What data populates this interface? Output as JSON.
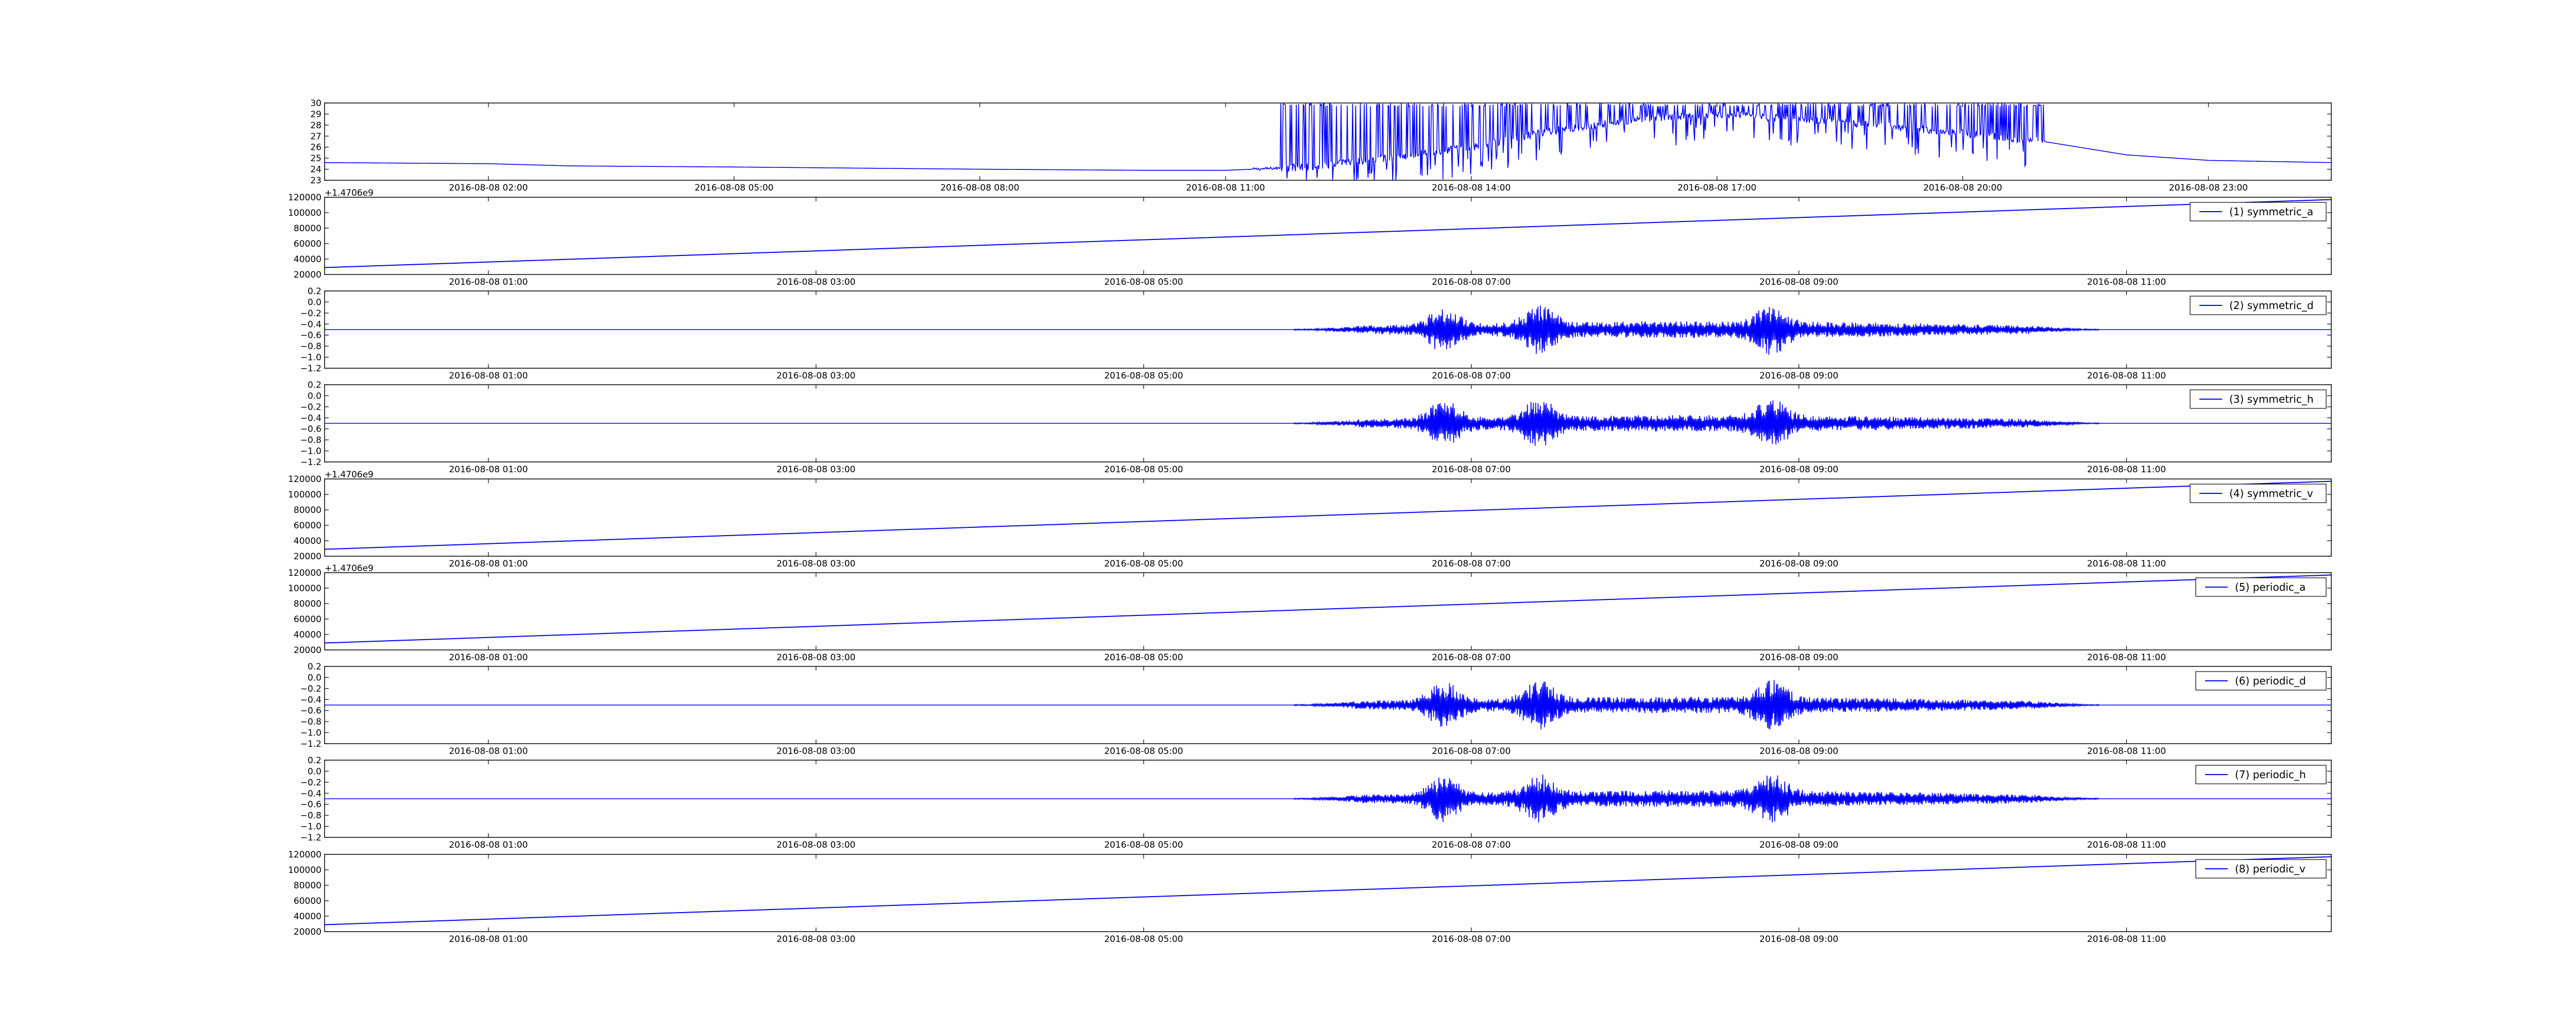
{
  "colors": {
    "line": "#0000ff",
    "axes": "#000000",
    "background": "#ffffff"
  },
  "chart_data": [
    {
      "type": "line",
      "legend": null,
      "ylim": [
        23,
        30
      ],
      "yticks": [
        "30",
        "29",
        "28",
        "27",
        "26",
        "25",
        "24",
        "23"
      ],
      "ytick_values": [
        30,
        29,
        28,
        27,
        26,
        25,
        24,
        23
      ],
      "xlim": [
        "2016-08-08 00:00",
        "2016-08-09 00:30"
      ],
      "xticks": [
        "2016-08-08 02:00",
        "2016-08-08 05:00",
        "2016-08-08 08:00",
        "2016-08-08 11:00",
        "2016-08-08 14:00",
        "2016-08-08 17:00",
        "2016-08-08 20:00",
        "2016-08-08 23:00"
      ],
      "xtick_values": [
        120,
        300,
        480,
        660,
        840,
        1020,
        1200,
        1380
      ],
      "x_minutes": [
        0,
        120,
        180,
        300,
        480,
        600,
        660,
        720,
        780,
        840,
        900,
        960,
        1020,
        1080,
        1140,
        1260,
        1320,
        1380,
        1470
      ],
      "values": [
        24.6,
        24.5,
        24.3,
        24.2,
        24.0,
        23.9,
        23.9,
        24.2,
        25.0,
        26.0,
        27.5,
        28.5,
        29.0,
        28.5,
        28.0,
        26.5,
        25.3,
        24.8,
        24.6
      ],
      "noise": {
        "from": 700,
        "to": 1260,
        "style": "spiky"
      }
    },
    {
      "type": "line",
      "legend": "(1) symmetric_a",
      "offset_text": "+1.4706e9",
      "ylim": [
        20000,
        120000
      ],
      "yticks": [
        "120000",
        "100000",
        "80000",
        "60000",
        "40000",
        "20000"
      ],
      "ytick_values": [
        120000,
        100000,
        80000,
        60000,
        40000,
        20000
      ],
      "xlim": [
        "2016-08-08 00:00",
        "2016-08-08 12:15"
      ],
      "xticks": [
        "2016-08-08 01:00",
        "2016-08-08 03:00",
        "2016-08-08 05:00",
        "2016-08-08 07:00",
        "2016-08-08 09:00",
        "2016-08-08 11:00"
      ],
      "xtick_values": [
        60,
        180,
        300,
        420,
        540,
        660
      ],
      "x_minutes": [
        0,
        735
      ],
      "values": [
        29000,
        117000
      ]
    },
    {
      "type": "line",
      "legend": "(2) symmetric_d",
      "ylim": [
        -1.2,
        0.2
      ],
      "yticks": [
        "0.2",
        "0.0",
        "−0.2",
        "−0.4",
        "−0.6",
        "−0.8",
        "−1.0",
        "−1.2"
      ],
      "ytick_values": [
        0.2,
        0.0,
        -0.2,
        -0.4,
        -0.6,
        -0.8,
        -1.0,
        -1.2
      ],
      "xlim": [
        "2016-08-08 00:00",
        "2016-08-08 12:15"
      ],
      "xticks": [
        "2016-08-08 01:00",
        "2016-08-08 03:00",
        "2016-08-08 05:00",
        "2016-08-08 07:00",
        "2016-08-08 09:00",
        "2016-08-08 11:00"
      ],
      "xtick_values": [
        60,
        180,
        300,
        420,
        540,
        660
      ],
      "x_minutes": [
        0,
        735
      ],
      "values": [
        -0.5,
        -0.5
      ],
      "noise": {
        "from": 355,
        "to": 650,
        "style": "vibration",
        "peaks": [
          410,
          445,
          530
        ]
      }
    },
    {
      "type": "line",
      "legend": "(3) symmetric_h",
      "ylim": [
        -1.2,
        0.2
      ],
      "yticks": [
        "0.2",
        "0.0",
        "−0.2",
        "−0.4",
        "−0.6",
        "−0.8",
        "−1.0",
        "−1.2"
      ],
      "ytick_values": [
        0.2,
        0.0,
        -0.2,
        -0.4,
        -0.6,
        -0.8,
        -1.0,
        -1.2
      ],
      "xlim": [
        "2016-08-08 00:00",
        "2016-08-08 12:15"
      ],
      "xticks": [
        "2016-08-08 01:00",
        "2016-08-08 03:00",
        "2016-08-08 05:00",
        "2016-08-08 07:00",
        "2016-08-08 09:00",
        "2016-08-08 11:00"
      ],
      "xtick_values": [
        60,
        180,
        300,
        420,
        540,
        660
      ],
      "x_minutes": [
        0,
        735
      ],
      "values": [
        -0.5,
        -0.5
      ],
      "noise": {
        "from": 355,
        "to": 650,
        "style": "vibration",
        "peaks": [
          410,
          445,
          530
        ]
      }
    },
    {
      "type": "line",
      "legend": "(4) symmetric_v",
      "offset_text": "+1.4706e9",
      "ylim": [
        20000,
        120000
      ],
      "yticks": [
        "120000",
        "100000",
        "80000",
        "60000",
        "40000",
        "20000"
      ],
      "ytick_values": [
        120000,
        100000,
        80000,
        60000,
        40000,
        20000
      ],
      "xlim": [
        "2016-08-08 00:00",
        "2016-08-08 12:15"
      ],
      "xticks": [
        "2016-08-08 01:00",
        "2016-08-08 03:00",
        "2016-08-08 05:00",
        "2016-08-08 07:00",
        "2016-08-08 09:00",
        "2016-08-08 11:00"
      ],
      "xtick_values": [
        60,
        180,
        300,
        420,
        540,
        660
      ],
      "x_minutes": [
        0,
        735
      ],
      "values": [
        29000,
        117000
      ]
    },
    {
      "type": "line",
      "legend": "(5) periodic_a",
      "offset_text": "+1.4706e9",
      "ylim": [
        20000,
        120000
      ],
      "yticks": [
        "120000",
        "100000",
        "80000",
        "60000",
        "40000",
        "20000"
      ],
      "ytick_values": [
        120000,
        100000,
        80000,
        60000,
        40000,
        20000
      ],
      "xlim": [
        "2016-08-08 00:00",
        "2016-08-08 12:15"
      ],
      "xticks": [
        "2016-08-08 01:00",
        "2016-08-08 03:00",
        "2016-08-08 05:00",
        "2016-08-08 07:00",
        "2016-08-08 09:00",
        "2016-08-08 11:00"
      ],
      "xtick_values": [
        60,
        180,
        300,
        420,
        540,
        660
      ],
      "x_minutes": [
        0,
        735
      ],
      "values": [
        29000,
        117000
      ]
    },
    {
      "type": "line",
      "legend": "(6) periodic_d",
      "ylim": [
        -1.2,
        0.2
      ],
      "yticks": [
        "0.2",
        "0.0",
        "−0.2",
        "−0.4",
        "−0.6",
        "−0.8",
        "−1.0",
        "−1.2"
      ],
      "ytick_values": [
        0.2,
        0.0,
        -0.2,
        -0.4,
        -0.6,
        -0.8,
        -1.0,
        -1.2
      ],
      "xlim": [
        "2016-08-08 00:00",
        "2016-08-08 12:15"
      ],
      "xticks": [
        "2016-08-08 01:00",
        "2016-08-08 03:00",
        "2016-08-08 05:00",
        "2016-08-08 07:00",
        "2016-08-08 09:00",
        "2016-08-08 11:00"
      ],
      "xtick_values": [
        60,
        180,
        300,
        420,
        540,
        660
      ],
      "x_minutes": [
        0,
        735
      ],
      "values": [
        -0.5,
        -0.5
      ],
      "noise": {
        "from": 355,
        "to": 650,
        "style": "vibration",
        "peaks": [
          410,
          445,
          530
        ]
      }
    },
    {
      "type": "line",
      "legend": "(7) periodic_h",
      "ylim": [
        -1.2,
        0.2
      ],
      "yticks": [
        "0.2",
        "0.0",
        "−0.2",
        "−0.4",
        "−0.6",
        "−0.8",
        "−1.0",
        "−1.2"
      ],
      "ytick_values": [
        0.2,
        0.0,
        -0.2,
        -0.4,
        -0.6,
        -0.8,
        -1.0,
        -1.2
      ],
      "xlim": [
        "2016-08-08 00:00",
        "2016-08-08 12:15"
      ],
      "xticks": [
        "2016-08-08 01:00",
        "2016-08-08 03:00",
        "2016-08-08 05:00",
        "2016-08-08 07:00",
        "2016-08-08 09:00",
        "2016-08-08 11:00"
      ],
      "xtick_values": [
        60,
        180,
        300,
        420,
        540,
        660
      ],
      "x_minutes": [
        0,
        735
      ],
      "values": [
        -0.5,
        -0.5
      ],
      "noise": {
        "from": 355,
        "to": 650,
        "style": "vibration",
        "peaks": [
          410,
          445,
          530
        ]
      }
    },
    {
      "type": "line",
      "legend": "(8) periodic_v",
      "ylim": [
        20000,
        120000
      ],
      "yticks": [
        "120000",
        "100000",
        "80000",
        "60000",
        "40000",
        "20000"
      ],
      "ytick_values": [
        120000,
        100000,
        80000,
        60000,
        40000,
        20000
      ],
      "xlim": [
        "2016-08-08 00:00",
        "2016-08-08 12:15"
      ],
      "xticks": [
        "2016-08-08 01:00",
        "2016-08-08 03:00",
        "2016-08-08 05:00",
        "2016-08-08 07:00",
        "2016-08-08 09:00",
        "2016-08-08 11:00"
      ],
      "xtick_values": [
        60,
        180,
        300,
        420,
        540,
        660
      ],
      "x_minutes": [
        0,
        735
      ],
      "values": [
        29000,
        117000
      ]
    }
  ]
}
